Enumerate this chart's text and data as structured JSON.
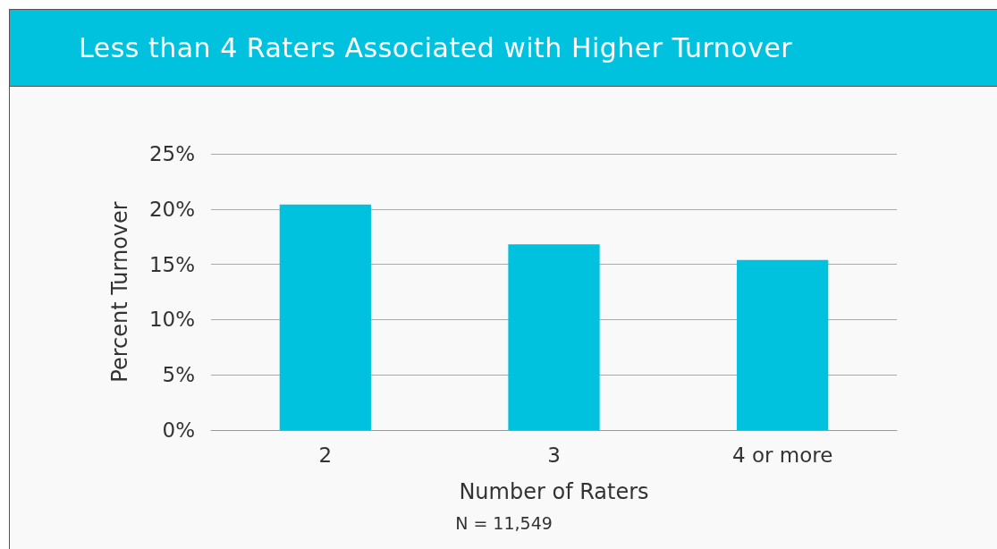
{
  "chart_data": {
    "type": "bar",
    "title": "Less than 4 Raters Associated with Higher Turnover",
    "xlabel": "Number of Raters",
    "ylabel": "Percent Turnover",
    "annotations": [
      "N = 11,549"
    ],
    "categories": [
      "2",
      "3",
      "4 or more"
    ],
    "values": [
      20.4,
      16.8,
      15.4
    ],
    "color": "#00c2de",
    "ylim": [
      0,
      25
    ],
    "yticks": [
      {
        "value": 0,
        "label": "0%"
      },
      {
        "value": 5,
        "label": "5%"
      },
      {
        "value": 10,
        "label": "10%"
      },
      {
        "value": 15,
        "label": "15%"
      },
      {
        "value": 20,
        "label": "20%"
      },
      {
        "value": 25,
        "label": "25%"
      }
    ],
    "grid": "y"
  }
}
